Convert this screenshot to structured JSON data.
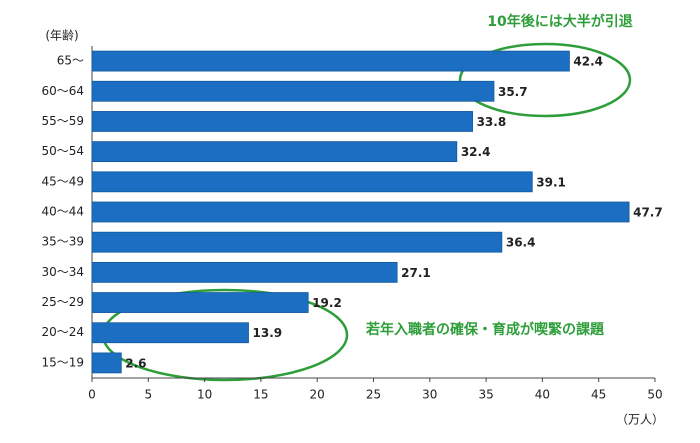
{
  "chart_data": {
    "type": "bar",
    "orientation": "horizontal",
    "y_axis_label": "(年齢)",
    "x_axis_label": "（万人）",
    "categories": [
      "65～",
      "60～64",
      "55～59",
      "50～54",
      "45～49",
      "40～44",
      "35～39",
      "30～34",
      "25～29",
      "20～24",
      "15～19"
    ],
    "values": [
      42.4,
      35.7,
      33.8,
      32.4,
      39.1,
      47.7,
      36.4,
      27.1,
      19.2,
      13.9,
      2.6
    ],
    "color": "#1b6ec2",
    "xlim": [
      0,
      50
    ],
    "xticks": [
      0,
      5,
      10,
      15,
      20,
      25,
      30,
      35,
      40,
      45,
      50
    ],
    "grid": false,
    "annotations": [
      "10年後には大半が引退",
      "若年入職者の確保・育成が喫緊の課題"
    ]
  }
}
